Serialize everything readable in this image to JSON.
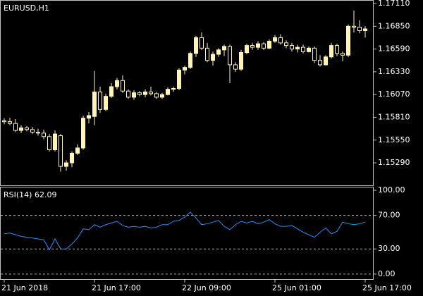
{
  "chart_data": [
    {
      "type": "candlestick",
      "title": "EURUSD,H1",
      "color": "#fff4b0",
      "down_color": "#000000",
      "categories": [
        "21 Jun 2018",
        null,
        null,
        null,
        null,
        null,
        null,
        null,
        null,
        null,
        null,
        null,
        null,
        null,
        null,
        null,
        "21 Jun 17:00",
        null,
        null,
        null,
        null,
        null,
        null,
        null,
        null,
        null,
        null,
        null,
        null,
        null,
        null,
        null,
        "22 Jun 09:00",
        null,
        null,
        null,
        null,
        null,
        null,
        null,
        null,
        null,
        null,
        null,
        null,
        null,
        null,
        null,
        "25 Jun 01:00",
        null,
        null,
        null,
        null,
        null,
        null,
        null,
        null,
        null,
        null,
        null,
        null,
        null,
        null,
        null,
        "25 Jun 17:00"
      ],
      "open": [
        1.1577,
        1.1576,
        1.1574,
        1.1566,
        1.1569,
        1.1567,
        1.1564,
        1.1563,
        1.1559,
        1.1544,
        1.156,
        1.1525,
        1.1529,
        1.154,
        1.1546,
        1.158,
        1.1582,
        1.161,
        1.159,
        1.1605,
        1.1616,
        1.1623,
        1.1611,
        1.1604,
        1.1609,
        1.1607,
        1.161,
        1.1608,
        1.1604,
        1.1607,
        1.1613,
        1.1614,
        1.1635,
        1.1638,
        1.1654,
        1.1672,
        1.166,
        1.1646,
        1.1653,
        1.1658,
        1.1662,
        1.1641,
        1.1636,
        1.1655,
        1.1663,
        1.1661,
        1.1665,
        1.166,
        1.1668,
        1.1672,
        1.1666,
        1.1663,
        1.1659,
        1.1661,
        1.1656,
        1.166,
        1.1646,
        1.1641,
        1.165,
        1.1663,
        1.1654,
        1.1652,
        1.1685,
        1.1684,
        1.168
      ],
      "high": [
        1.158,
        1.15805,
        1.1579,
        1.1572,
        1.1571,
        1.157,
        1.1568,
        1.1567,
        1.1562,
        1.1566,
        1.1562,
        1.1532,
        1.1542,
        1.155,
        1.1583,
        1.1587,
        1.1634,
        1.1616,
        1.1608,
        1.162,
        1.1626,
        1.1629,
        1.1613,
        1.1612,
        1.1611,
        1.1613,
        1.1616,
        1.161,
        1.1609,
        1.1615,
        1.1616,
        1.1637,
        1.164,
        1.1656,
        1.1674,
        1.1678,
        1.1666,
        1.1656,
        1.166,
        1.1664,
        1.1664,
        1.1644,
        1.1658,
        1.1665,
        1.1666,
        1.1668,
        1.1667,
        1.167,
        1.1675,
        1.1676,
        1.1669,
        1.1666,
        1.1664,
        1.1664,
        1.1662,
        1.1662,
        1.1652,
        1.1652,
        1.1666,
        1.1665,
        1.1656,
        1.1687,
        1.1703,
        1.1692,
        1.1685
      ],
      "low": [
        1.1573,
        1.1572,
        1.1564,
        1.1563,
        1.1565,
        1.1562,
        1.156,
        1.1556,
        1.1542,
        1.1542,
        1.1519,
        1.152,
        1.1524,
        1.1538,
        1.1544,
        1.1574,
        1.1572,
        1.1586,
        1.1588,
        1.1603,
        1.1613,
        1.1609,
        1.1602,
        1.1601,
        1.1605,
        1.1604,
        1.1606,
        1.1602,
        1.1602,
        1.1606,
        1.161,
        1.1612,
        1.163,
        1.1636,
        1.165,
        1.1658,
        1.1644,
        1.164,
        1.165,
        1.1651,
        1.162,
        1.1633,
        1.1634,
        1.1653,
        1.1658,
        1.1658,
        1.1658,
        1.1659,
        1.1666,
        1.1664,
        1.166,
        1.1656,
        1.1655,
        1.1654,
        1.1655,
        1.1643,
        1.1639,
        1.164,
        1.1648,
        1.1651,
        1.1645,
        1.165,
        1.1678,
        1.1677,
        1.1672
      ],
      "close": [
        1.1576,
        1.1574,
        1.1566,
        1.1569,
        1.1567,
        1.1564,
        1.1563,
        1.1559,
        1.1544,
        1.1562,
        1.1525,
        1.1529,
        1.154,
        1.1546,
        1.158,
        1.1583,
        1.161,
        1.159,
        1.1605,
        1.1616,
        1.1623,
        1.1611,
        1.1604,
        1.1609,
        1.1607,
        1.161,
        1.1608,
        1.1604,
        1.1607,
        1.1613,
        1.1614,
        1.1635,
        1.1638,
        1.1654,
        1.1672,
        1.166,
        1.1646,
        1.1653,
        1.1658,
        1.1662,
        1.1641,
        1.1636,
        1.1655,
        1.1663,
        1.1661,
        1.1665,
        1.166,
        1.1668,
        1.1672,
        1.1666,
        1.1663,
        1.1659,
        1.1661,
        1.1656,
        1.166,
        1.1646,
        1.1641,
        1.165,
        1.1663,
        1.1654,
        1.1652,
        1.1685,
        1.1684,
        1.168,
        1.1682
      ],
      "ylim": [
        1.15033,
        1.1715
      ],
      "yticks": [
        {
          "value": 1.1711,
          "label": "1.17110"
        },
        {
          "value": 1.1685,
          "label": "1.16850"
        },
        {
          "value": 1.1659,
          "label": "1.16590"
        },
        {
          "value": 1.1633,
          "label": "1.16330"
        },
        {
          "value": 1.1607,
          "label": "1.16070"
        },
        {
          "value": 1.1581,
          "label": "1.15810"
        },
        {
          "value": 1.1555,
          "label": "1.15550"
        },
        {
          "value": 1.1529,
          "label": "1.15290"
        }
      ]
    },
    {
      "type": "line",
      "title": "RSI(14)",
      "color": "#1e90ff",
      "values": [
        48,
        49,
        47,
        45,
        44,
        43,
        42,
        41,
        29,
        42,
        30,
        30,
        36,
        43,
        54,
        53,
        59,
        56,
        59,
        61,
        63,
        58,
        56,
        57,
        56,
        57,
        55,
        56,
        59,
        59,
        63,
        64,
        68,
        74,
        67,
        59,
        60,
        62,
        64,
        57,
        53,
        59,
        63,
        61,
        63,
        60,
        62,
        65,
        60,
        57,
        57,
        58,
        54,
        50,
        47,
        44,
        50,
        55,
        48,
        51,
        62,
        60,
        59,
        60,
        62.09
      ],
      "ylim": [
        -6.8,
        104.2
      ],
      "yticks": [
        {
          "value": 100,
          "label": "100.00"
        },
        {
          "value": 70,
          "label": "70.00"
        },
        {
          "value": 30,
          "label": "30.00"
        },
        {
          "value": 0,
          "label": "0.00"
        }
      ]
    }
  ]
}
